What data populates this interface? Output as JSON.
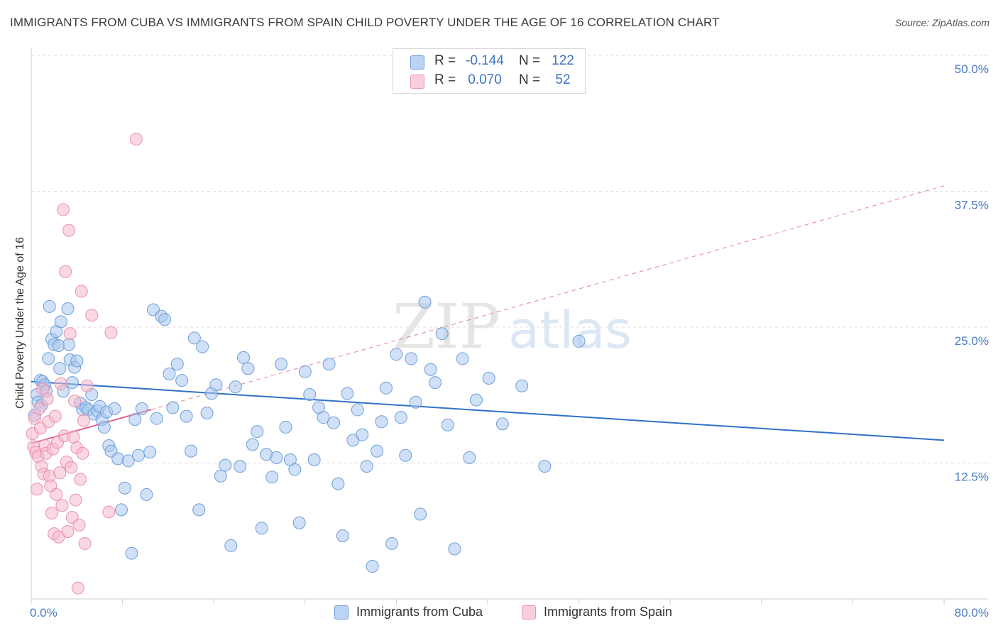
{
  "title": "IMMIGRANTS FROM CUBA VS IMMIGRANTS FROM SPAIN CHILD POVERTY UNDER THE AGE OF 16 CORRELATION CHART",
  "source": "Source: ZipAtlas.com",
  "watermark": {
    "zip": "ZIP",
    "atlas": "atlas"
  },
  "legend_top": {
    "rows": [
      {
        "r_label": "R =",
        "r_value": "-0.144",
        "n_label": "N =",
        "n_value": "122",
        "color": "#a9c6ef"
      },
      {
        "r_label": "R =",
        "r_value": "0.070",
        "n_label": "N =",
        "n_value": "52",
        "color": "#f5b8cc"
      }
    ]
  },
  "legend_bottom": [
    {
      "label": "Immigrants from Cuba",
      "color": "#a9c6ef"
    },
    {
      "label": "Immigrants from Spain",
      "color": "#f5b8cc"
    }
  ],
  "colors": {
    "cuba_fill": "#a9c6ef",
    "cuba_stroke": "#6f9fd8",
    "cuba_line": "#2f72c8",
    "spain_fill": "#f5b8cc",
    "spain_stroke": "#e991ad",
    "spain_line": "#e0648e",
    "grid": "#dcdcdc",
    "tick_text": "#4a7cc4"
  },
  "chart_data": {
    "type": "scatter",
    "title": "IMMIGRANTS FROM CUBA VS IMMIGRANTS FROM SPAIN CHILD POVERTY UNDER THE AGE OF 16 CORRELATION CHART",
    "xlabel": "",
    "ylabel": "Child Poverty Under the Age of 16",
    "xlim": [
      0,
      80
    ],
    "ylim": [
      0,
      50
    ],
    "x_tick_labels": [
      "0.0%",
      "80.0%"
    ],
    "y_ticks": [
      12.5,
      25.0,
      37.5,
      50.0
    ],
    "y_tick_labels": [
      "12.5%",
      "25.0%",
      "37.5%",
      "50.0%"
    ],
    "grid": true,
    "legend_position": "top-center",
    "series": [
      {
        "name": "Immigrants from Cuba",
        "r": -0.144,
        "n": 122,
        "trend": {
          "x": [
            0,
            80
          ],
          "y": [
            20.0,
            14.6
          ]
        },
        "points": [
          [
            0.3,
            16.9
          ],
          [
            0.5,
            18.8
          ],
          [
            0.6,
            18.1
          ],
          [
            0.8,
            20.1
          ],
          [
            0.9,
            17.8
          ],
          [
            1.0,
            20.0
          ],
          [
            1.2,
            19.7
          ],
          [
            1.3,
            19.1
          ],
          [
            1.5,
            22.1
          ],
          [
            1.6,
            26.9
          ],
          [
            1.8,
            23.9
          ],
          [
            2.0,
            23.4
          ],
          [
            2.2,
            24.6
          ],
          [
            2.4,
            23.3
          ],
          [
            2.5,
            21.2
          ],
          [
            2.6,
            25.5
          ],
          [
            2.8,
            19.1
          ],
          [
            3.2,
            26.7
          ],
          [
            3.3,
            23.4
          ],
          [
            3.4,
            22.0
          ],
          [
            3.6,
            19.9
          ],
          [
            3.8,
            21.3
          ],
          [
            4.0,
            21.9
          ],
          [
            4.3,
            18.0
          ],
          [
            4.5,
            17.4
          ],
          [
            4.8,
            17.6
          ],
          [
            5.0,
            17.4
          ],
          [
            5.3,
            18.8
          ],
          [
            5.5,
            17.0
          ],
          [
            5.8,
            17.3
          ],
          [
            6.0,
            17.7
          ],
          [
            6.2,
            16.5
          ],
          [
            6.4,
            15.8
          ],
          [
            6.6,
            17.2
          ],
          [
            6.8,
            14.1
          ],
          [
            7.0,
            13.6
          ],
          [
            7.3,
            17.5
          ],
          [
            7.6,
            12.9
          ],
          [
            7.9,
            8.2
          ],
          [
            8.2,
            10.2
          ],
          [
            8.5,
            12.7
          ],
          [
            8.8,
            4.2
          ],
          [
            9.1,
            16.5
          ],
          [
            9.4,
            13.2
          ],
          [
            9.7,
            17.5
          ],
          [
            10.1,
            9.6
          ],
          [
            10.4,
            13.5
          ],
          [
            10.7,
            26.6
          ],
          [
            11.0,
            16.6
          ],
          [
            11.4,
            26.0
          ],
          [
            11.7,
            25.7
          ],
          [
            12.1,
            20.7
          ],
          [
            12.4,
            17.6
          ],
          [
            12.8,
            21.6
          ],
          [
            13.2,
            20.1
          ],
          [
            13.6,
            16.8
          ],
          [
            14.0,
            13.6
          ],
          [
            14.3,
            24.0
          ],
          [
            14.7,
            8.2
          ],
          [
            15.0,
            23.2
          ],
          [
            15.4,
            17.1
          ],
          [
            15.8,
            18.9
          ],
          [
            16.2,
            19.7
          ],
          [
            16.6,
            11.3
          ],
          [
            17.0,
            12.3
          ],
          [
            17.5,
            4.9
          ],
          [
            17.9,
            19.5
          ],
          [
            18.3,
            12.2
          ],
          [
            18.6,
            22.2
          ],
          [
            19.0,
            21.2
          ],
          [
            19.4,
            14.2
          ],
          [
            19.8,
            15.4
          ],
          [
            20.2,
            6.5
          ],
          [
            20.6,
            13.3
          ],
          [
            21.1,
            11.2
          ],
          [
            21.5,
            13.0
          ],
          [
            21.9,
            21.6
          ],
          [
            22.3,
            15.8
          ],
          [
            22.7,
            12.8
          ],
          [
            23.1,
            11.9
          ],
          [
            23.5,
            7.0
          ],
          [
            24.0,
            20.9
          ],
          [
            24.4,
            18.8
          ],
          [
            24.8,
            12.8
          ],
          [
            25.2,
            17.6
          ],
          [
            25.6,
            16.7
          ],
          [
            26.1,
            21.6
          ],
          [
            26.5,
            16.2
          ],
          [
            26.9,
            10.6
          ],
          [
            27.3,
            5.8
          ],
          [
            27.7,
            18.9
          ],
          [
            28.2,
            14.6
          ],
          [
            28.6,
            17.4
          ],
          [
            29.0,
            15.1
          ],
          [
            29.4,
            12.2
          ],
          [
            29.9,
            3.0
          ],
          [
            30.3,
            13.6
          ],
          [
            30.7,
            16.3
          ],
          [
            31.1,
            19.4
          ],
          [
            31.6,
            5.1
          ],
          [
            32.0,
            22.5
          ],
          [
            32.4,
            16.7
          ],
          [
            32.8,
            13.2
          ],
          [
            33.3,
            22.1
          ],
          [
            33.7,
            18.1
          ],
          [
            34.1,
            7.8
          ],
          [
            34.5,
            27.3
          ],
          [
            35.0,
            21.1
          ],
          [
            35.4,
            19.9
          ],
          [
            36.0,
            24.4
          ],
          [
            36.5,
            16.0
          ],
          [
            37.1,
            4.6
          ],
          [
            37.8,
            22.1
          ],
          [
            38.4,
            13.0
          ],
          [
            39.0,
            18.3
          ],
          [
            40.1,
            20.3
          ],
          [
            41.3,
            16.1
          ],
          [
            43.0,
            19.6
          ],
          [
            45.0,
            12.2
          ],
          [
            48.0,
            23.7
          ]
        ]
      },
      {
        "name": "Immigrants from Spain",
        "r": 0.07,
        "n": 52,
        "trend": {
          "x": [
            0,
            80
          ],
          "y": [
            14.3,
            38.0
          ]
        },
        "points": [
          [
            0.1,
            15.2
          ],
          [
            0.2,
            14.0
          ],
          [
            0.3,
            16.6
          ],
          [
            0.4,
            13.5
          ],
          [
            0.5,
            10.1
          ],
          [
            0.6,
            13.1
          ],
          [
            0.7,
            17.5
          ],
          [
            0.8,
            15.7
          ],
          [
            0.9,
            12.2
          ],
          [
            1.0,
            19.3
          ],
          [
            1.1,
            11.5
          ],
          [
            1.2,
            14.1
          ],
          [
            1.3,
            13.4
          ],
          [
            1.4,
            18.4
          ],
          [
            1.5,
            16.3
          ],
          [
            1.6,
            11.3
          ],
          [
            1.7,
            10.4
          ],
          [
            1.8,
            7.9
          ],
          [
            1.9,
            13.8
          ],
          [
            2.0,
            6.0
          ],
          [
            2.1,
            16.8
          ],
          [
            2.2,
            9.6
          ],
          [
            2.3,
            14.4
          ],
          [
            2.4,
            5.7
          ],
          [
            2.5,
            11.6
          ],
          [
            2.6,
            19.8
          ],
          [
            2.7,
            8.6
          ],
          [
            2.8,
            35.8
          ],
          [
            2.9,
            15.0
          ],
          [
            3.0,
            30.1
          ],
          [
            3.1,
            12.6
          ],
          [
            3.2,
            6.2
          ],
          [
            3.3,
            33.9
          ],
          [
            3.4,
            24.4
          ],
          [
            3.5,
            12.1
          ],
          [
            3.6,
            7.5
          ],
          [
            3.7,
            14.9
          ],
          [
            3.8,
            18.2
          ],
          [
            3.9,
            9.1
          ],
          [
            4.0,
            13.9
          ],
          [
            4.1,
            1.0
          ],
          [
            4.2,
            6.8
          ],
          [
            4.3,
            11.0
          ],
          [
            4.4,
            28.3
          ],
          [
            4.5,
            13.4
          ],
          [
            4.6,
            16.4
          ],
          [
            4.7,
            5.1
          ],
          [
            4.9,
            19.6
          ],
          [
            5.3,
            26.1
          ],
          [
            6.8,
            8.0
          ],
          [
            7.0,
            24.5
          ],
          [
            9.2,
            42.3
          ]
        ]
      }
    ]
  }
}
